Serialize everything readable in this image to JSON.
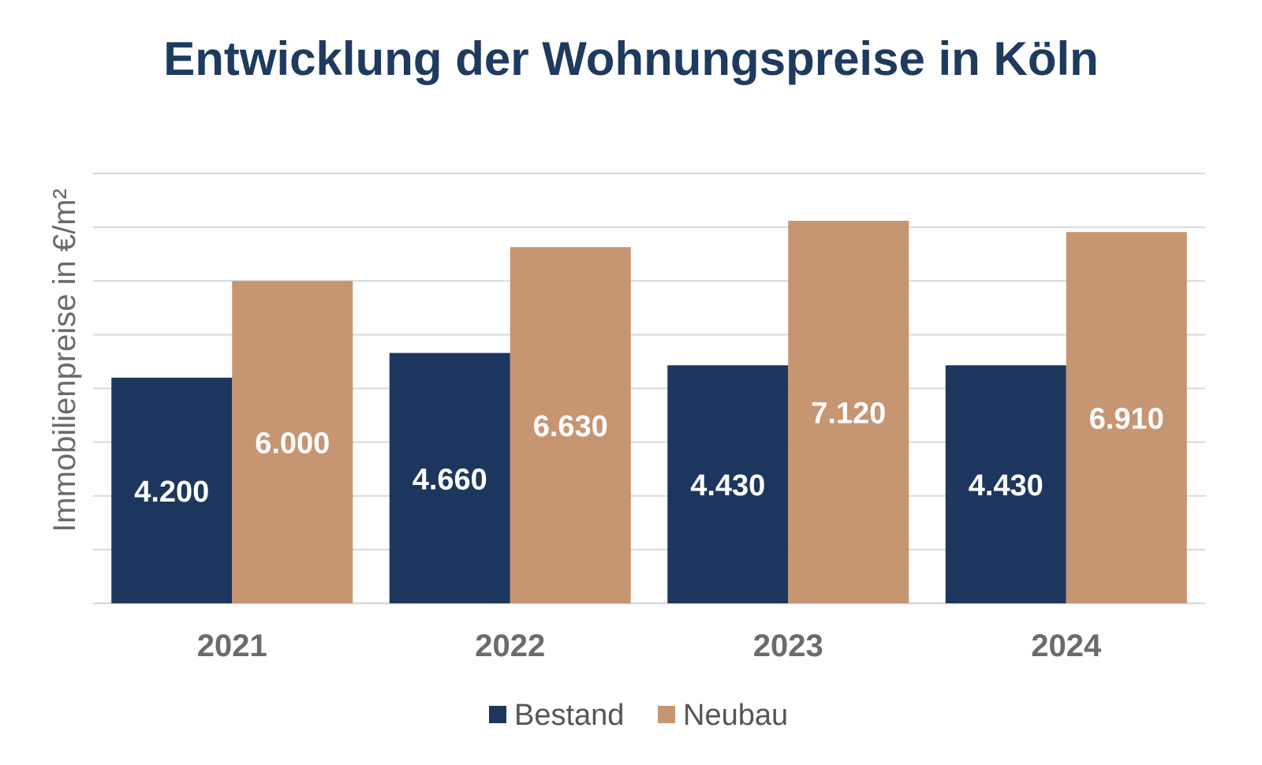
{
  "colors": {
    "title": "#1e3a5f",
    "bestand": "#1d365e",
    "neubau": "#c69572",
    "grid": "#d9d9d9",
    "tick": "#6b6b6b",
    "label": "#ffffff"
  },
  "chart_data": {
    "type": "bar",
    "title": "Entwicklung der Wohnungspreise in Köln",
    "ylabel": "Immobilienpreise in €/m²",
    "xlabel": "",
    "categories": [
      "2021",
      "2022",
      "2023",
      "2024"
    ],
    "series": [
      {
        "name": "Bestand",
        "values": [
          4200,
          4660,
          4430,
          4430
        ],
        "labels": [
          "4.200",
          "4.660",
          "4.430",
          "4.430"
        ]
      },
      {
        "name": "Neubau",
        "values": [
          6000,
          6630,
          7120,
          6910
        ],
        "labels": [
          "6.000",
          "6.630",
          "7.120",
          "6.910"
        ]
      }
    ],
    "ylim": [
      0,
      8000
    ],
    "grid": true,
    "legend": "bottom",
    "y_tick_labels_shown": false
  }
}
